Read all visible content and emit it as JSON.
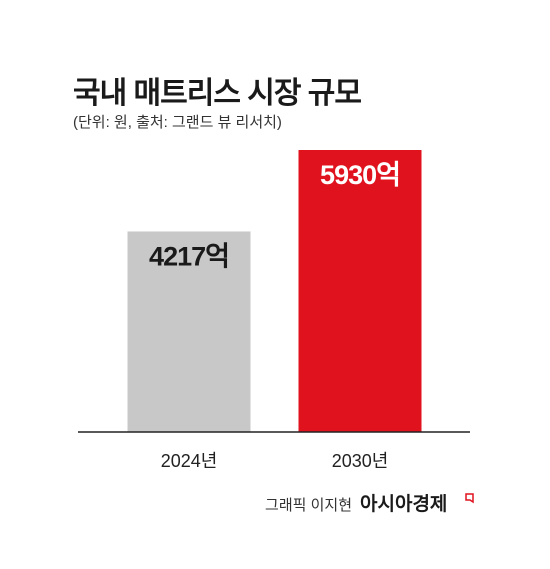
{
  "chart_data": {
    "type": "bar",
    "title": "국내 매트리스 시장 규모",
    "subtitle": "(단위: 원, 출처: 그랜드 뷰 리서치)",
    "categories": [
      "2024년",
      "2030년"
    ],
    "values": [
      4217,
      5930
    ],
    "value_labels": [
      "4217억",
      "5930억"
    ],
    "colors": [
      "#c8c8c8",
      "#e0121e"
    ],
    "label_colors": [
      "#1a1a1a",
      "#ffffff"
    ],
    "credit": "그래픽 이지현",
    "source": "아시아경제"
  }
}
